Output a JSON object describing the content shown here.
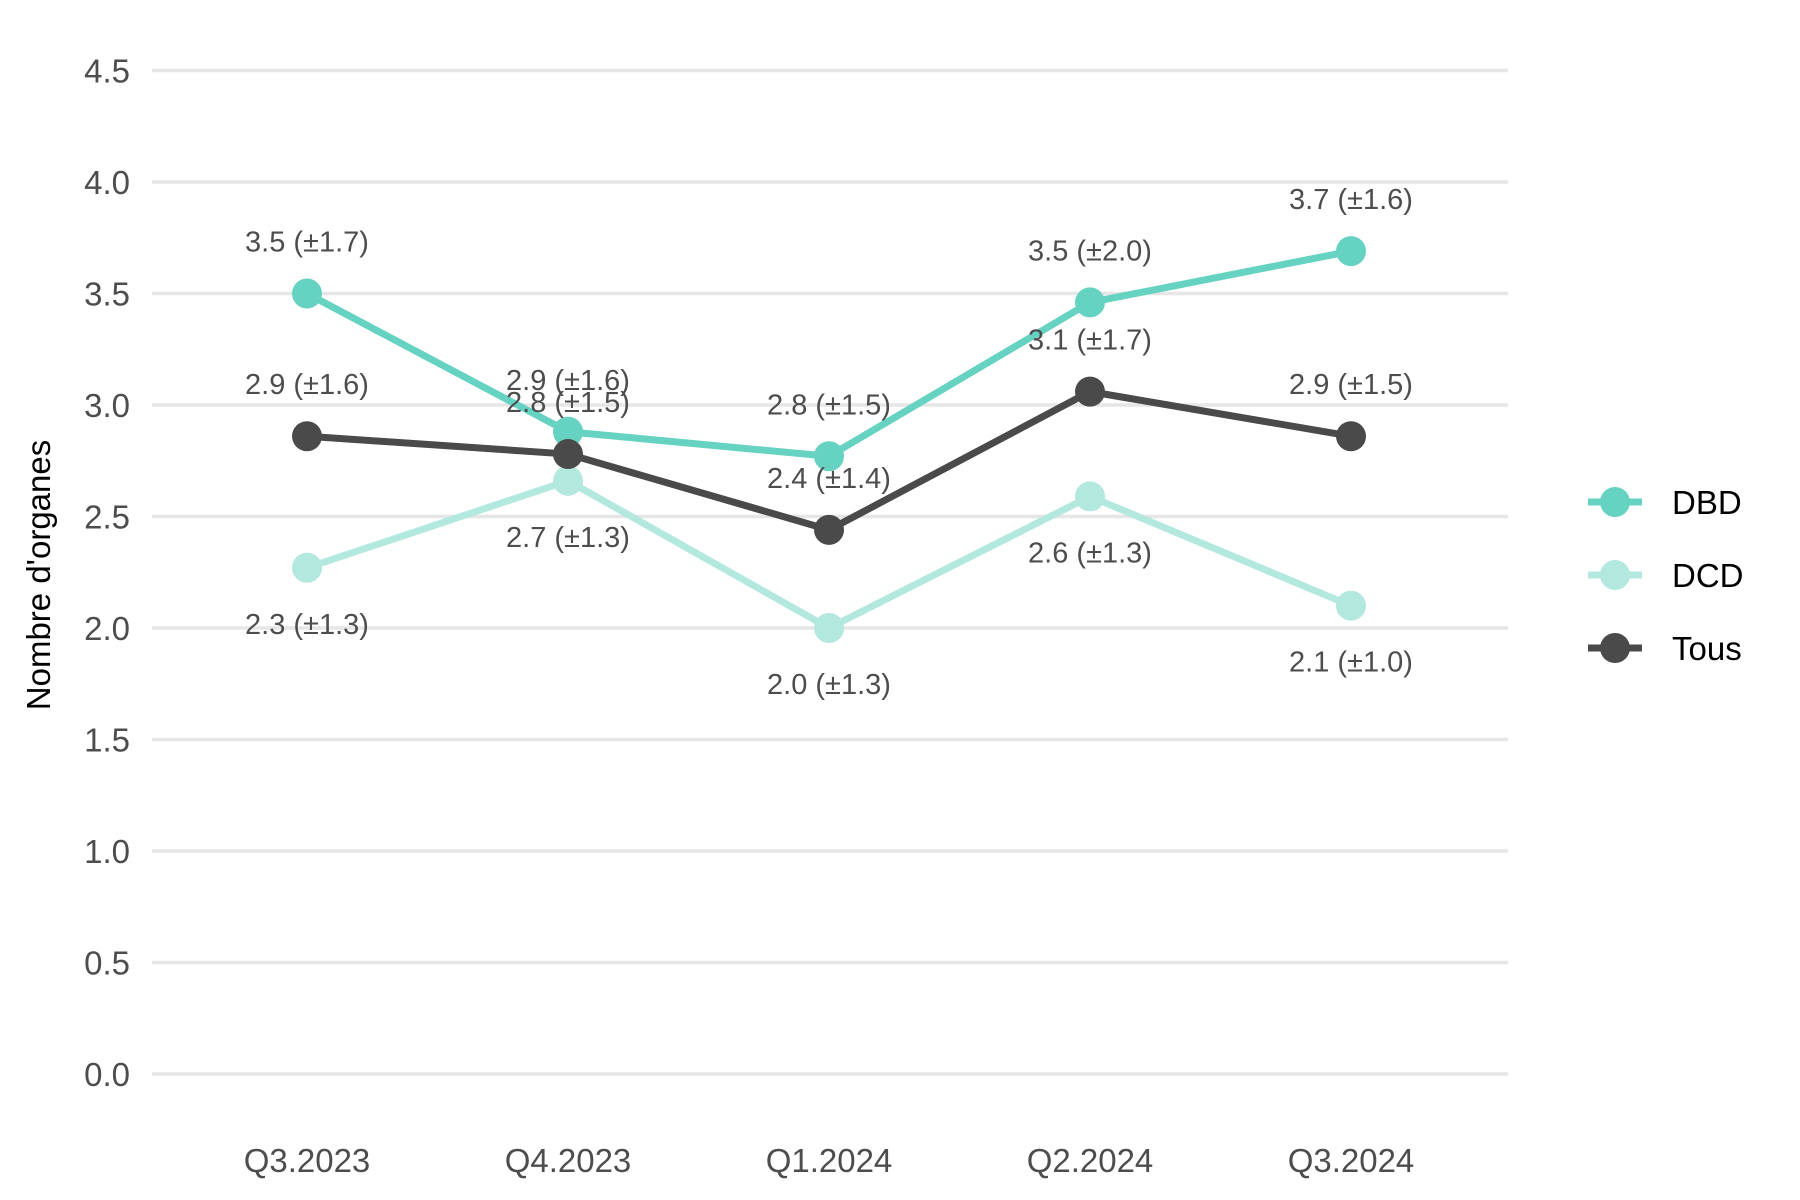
{
  "chart_data": {
    "type": "line",
    "title": "",
    "xlabel": "",
    "ylabel": "Nombre d'organes",
    "ylim": [
      0,
      4.5
    ],
    "yticks": [
      0,
      0.5,
      1,
      1.5,
      2,
      2.5,
      3,
      3.5,
      4,
      4.5
    ],
    "ytick_labels": [
      "0.0",
      "0.5",
      "1.0",
      "1.5",
      "2.0",
      "2.5",
      "3.0",
      "3.5",
      "4.0",
      "4.5"
    ],
    "categories": [
      "Q3.2023",
      "Q4.2023",
      "Q1.2024",
      "Q2.2024",
      "Q3.2024"
    ],
    "grid": true,
    "legend_position": "right",
    "series": [
      {
        "name": "DBD",
        "color": "#66d2c2",
        "values": [
          3.5,
          2.88,
          2.77,
          3.46,
          3.69
        ],
        "labels": [
          "3.5 (±1.7)",
          "2.9 (±1.6)",
          "2.8 (±1.5)",
          "3.5 (±2.0)",
          "3.7 (±1.6)"
        ],
        "label_side": [
          "above",
          "above",
          "above",
          "above",
          "above"
        ]
      },
      {
        "name": "DCD",
        "color": "#b3e8df",
        "values": [
          2.27,
          2.66,
          2.0,
          2.59,
          2.1
        ],
        "labels": [
          "2.3 (±1.3)",
          "2.7 (±1.3)",
          "2.0 (±1.3)",
          "2.6 (±1.3)",
          "2.1 (±1.0)"
        ],
        "label_side": [
          "below",
          "below",
          "below",
          "below",
          "below"
        ]
      },
      {
        "name": "Tous",
        "color": "#4a4a4a",
        "values": [
          2.86,
          2.78,
          2.44,
          3.06,
          2.86
        ],
        "labels": [
          "2.9 (±1.6)",
          "2.8 (±1.5)",
          "2.4 (±1.4)",
          "3.1 (±1.7)",
          "2.9 (±1.5)"
        ],
        "label_side": [
          "above",
          "above",
          "above",
          "above",
          "above"
        ]
      }
    ]
  }
}
